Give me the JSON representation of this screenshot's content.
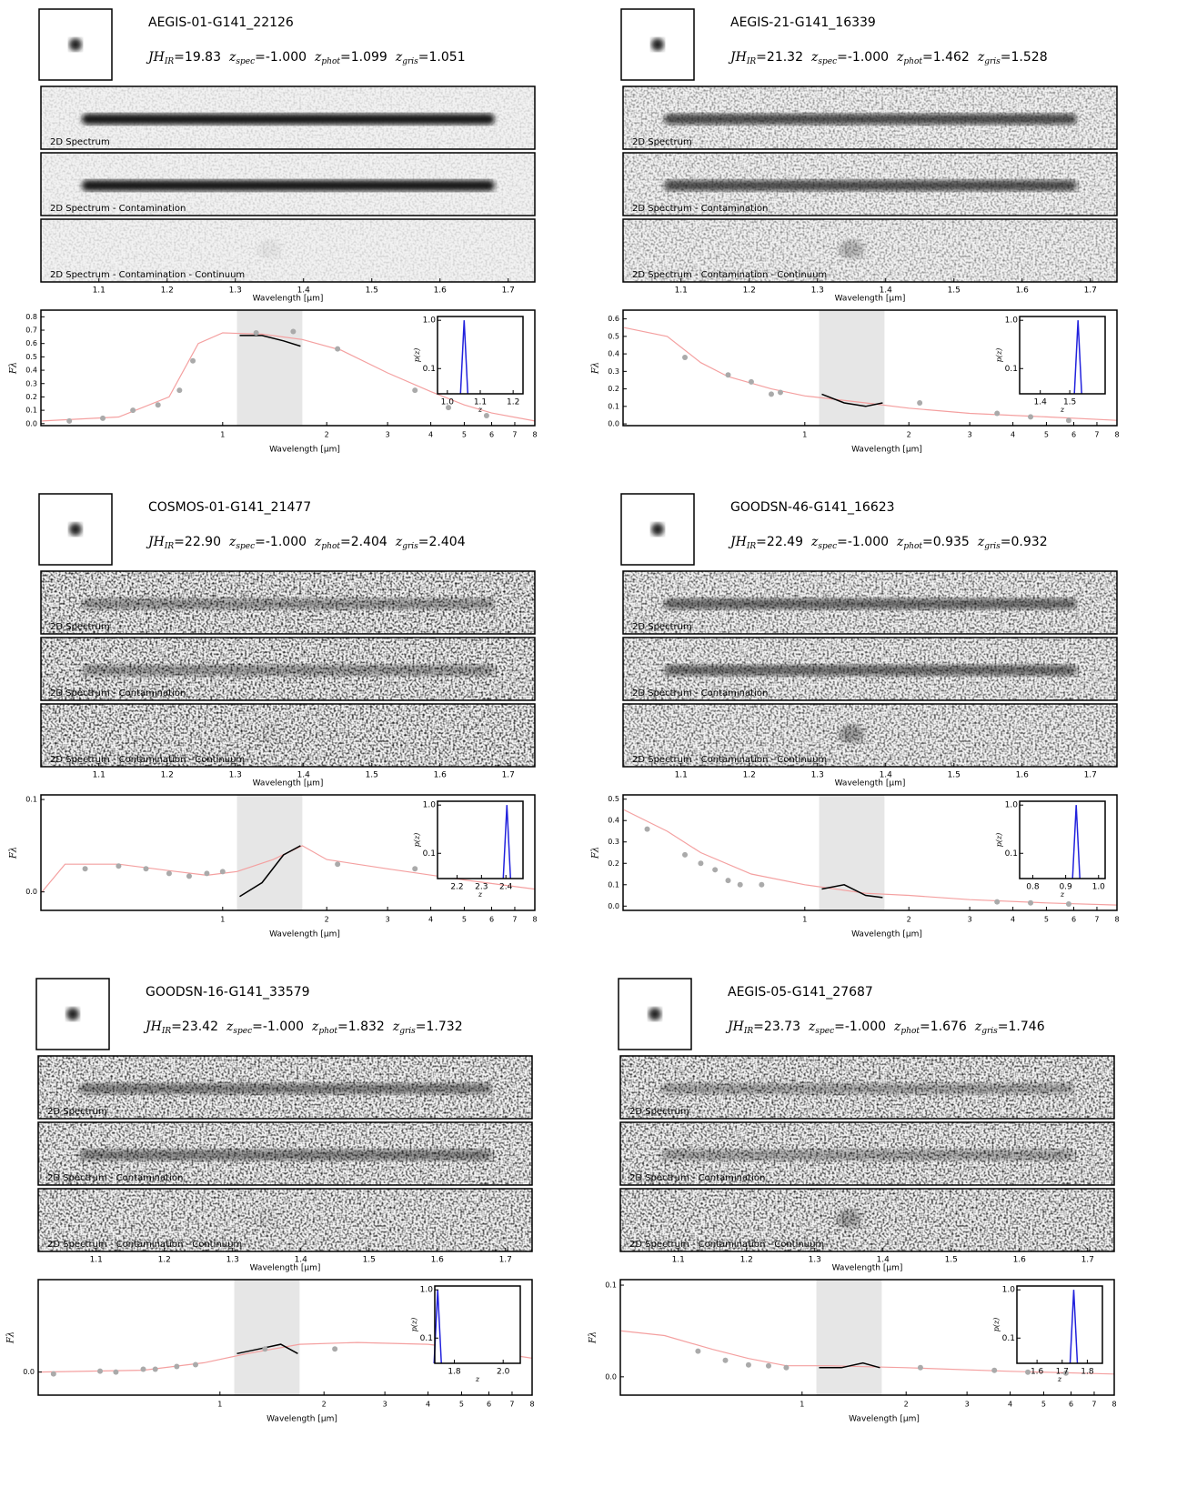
{
  "labels": {
    "jh": "JH",
    "ir": "IR",
    "z": "z",
    "spec": "spec",
    "phot": "phot",
    "gris": "gris",
    "eq": "=",
    "strips": [
      "2D Spectrum",
      "2D Spectrum - Contamination",
      "2D Spectrum - Contamination - Continuum"
    ],
    "wavelength": "Wavelength [μm]",
    "flux": "Fλ",
    "pz": "p(z)"
  },
  "panels": [
    {
      "object_id": "AEGIS-01-G141_22126",
      "jh": "19.83",
      "z_spec": "-1.000",
      "z_phot": "1.099",
      "z_gris": "1.051",
      "strip_axis": {
        "xlim": [
          1.015,
          1.739
        ],
        "xticks": [
          1.1,
          1.2,
          1.3,
          1.4,
          1.5,
          1.6,
          1.7
        ]
      },
      "sed": {
        "type": "line",
        "log_x": true,
        "xlim": [
          0.298,
          8.0
        ],
        "xticks": [
          1,
          2,
          3,
          4,
          5,
          6,
          7,
          8
        ],
        "ylim": [
          -0.015,
          0.85
        ],
        "yticks": [
          {
            "value": 0,
            "label": "0.0"
          },
          0.1,
          0.2,
          0.3,
          0.4,
          0.5,
          0.6,
          0.7,
          0.8
        ],
        "shade": [
          1.1,
          1.7
        ],
        "model": {
          "color": "#f4a0a0",
          "x": [
            0.3,
            0.5,
            0.7,
            0.85,
            1.0,
            1.3,
            1.7,
            2.2,
            3,
            4,
            5,
            6,
            8
          ],
          "y": [
            0.02,
            0.05,
            0.2,
            0.6,
            0.68,
            0.67,
            0.63,
            0.55,
            0.38,
            0.24,
            0.14,
            0.08,
            0.02
          ]
        },
        "spectrum": {
          "color": "#000000",
          "x": [
            1.12,
            1.3,
            1.5,
            1.68
          ],
          "y": [
            0.66,
            0.66,
            0.62,
            0.58
          ]
        },
        "photometry": {
          "color": "#aaaaaa",
          "x": [
            0.36,
            0.45,
            0.55,
            0.65,
            0.75,
            0.82,
            1.25,
            1.6,
            2.15,
            3.6,
            4.5,
            5.8
          ],
          "y": [
            0.02,
            0.04,
            0.1,
            0.14,
            0.25,
            0.47,
            0.68,
            0.69,
            0.56,
            0.25,
            0.12,
            0.06
          ]
        }
      },
      "inset": {
        "xlim": [
          0.97,
          1.23
        ],
        "xticks": [
          {
            "value": 1,
            "label": "1.0"
          },
          1.1,
          1.2
        ],
        "ylim": [
          0.03,
          1.2
        ],
        "yticks": [
          {
            "value": 1,
            "label": "1.0"
          },
          0.1
        ]
      }
    },
    {
      "object_id": "AEGIS-21-G141_16339",
      "jh": "21.32",
      "z_spec": "-1.000",
      "z_phot": "1.462",
      "z_gris": "1.528",
      "strip_axis": {
        "xlim": [
          1.015,
          1.739
        ],
        "xticks": [
          1.1,
          1.2,
          1.3,
          1.4,
          1.5,
          1.6,
          1.7
        ]
      },
      "sed": {
        "type": "line",
        "log_x": true,
        "xlim": [
          0.298,
          8.0
        ],
        "xticks": [
          1,
          2,
          3,
          4,
          5,
          6,
          7,
          8
        ],
        "ylim": [
          -0.01,
          0.65
        ],
        "yticks": [
          {
            "value": 0,
            "label": "0.0"
          },
          0.1,
          0.2,
          0.3,
          0.4,
          0.5,
          0.6
        ],
        "shade": [
          1.1,
          1.7
        ],
        "model": {
          "color": "#f4a0a0",
          "x": [
            0.3,
            0.4,
            0.5,
            0.6,
            0.8,
            1.0,
            1.5,
            2,
            3,
            5,
            8
          ],
          "y": [
            0.55,
            0.5,
            0.35,
            0.27,
            0.2,
            0.16,
            0.12,
            0.09,
            0.06,
            0.04,
            0.02
          ]
        },
        "spectrum": {
          "color": "#000000",
          "x": [
            1.12,
            1.3,
            1.5,
            1.68
          ],
          "y": [
            0.17,
            0.12,
            0.1,
            0.12
          ]
        },
        "photometry": {
          "color": "#aaaaaa",
          "x": [
            0.45,
            0.6,
            0.7,
            0.8,
            0.85,
            2.15,
            3.6,
            4.5,
            5.8
          ],
          "y": [
            0.38,
            0.28,
            0.24,
            0.17,
            0.18,
            0.12,
            0.06,
            0.04,
            0.02
          ]
        }
      },
      "inset": {
        "xlim": [
          1.33,
          1.62
        ],
        "xticks": [
          1.4,
          1.5
        ],
        "ylim": [
          0.03,
          1.2
        ],
        "yticks": [
          {
            "value": 1,
            "label": "1.0"
          },
          0.1
        ]
      }
    },
    {
      "object_id": "COSMOS-01-G141_21477",
      "jh": "22.90",
      "z_spec": "-1.000",
      "z_phot": "2.404",
      "z_gris": "2.404",
      "strip_axis": {
        "xlim": [
          1.015,
          1.739
        ],
        "xticks": [
          1.1,
          1.2,
          1.3,
          1.4,
          1.5,
          1.6,
          1.7
        ]
      },
      "sed": {
        "type": "line",
        "log_x": true,
        "xlim": [
          0.298,
          8.0
        ],
        "xticks": [
          1,
          2,
          3,
          4,
          5,
          6,
          7,
          8
        ],
        "ylim": [
          -0.02,
          0.105
        ],
        "yticks": [
          {
            "value": 0,
            "label": "0.0"
          },
          0.1
        ],
        "shade": [
          1.1,
          1.7
        ],
        "model": {
          "color": "#f4a0a0",
          "x": [
            0.3,
            0.35,
            0.5,
            0.7,
            0.9,
            1.1,
            1.4,
            1.7,
            2,
            3,
            5,
            8
          ],
          "y": [
            0.0,
            0.03,
            0.03,
            0.023,
            0.018,
            0.022,
            0.035,
            0.05,
            0.035,
            0.025,
            0.013,
            0.003
          ]
        },
        "spectrum": {
          "color": "#000000",
          "x": [
            1.12,
            1.3,
            1.5,
            1.68
          ],
          "y": [
            -0.005,
            0.01,
            0.04,
            0.05
          ]
        },
        "photometry": {
          "color": "#aaaaaa",
          "x": [
            0.4,
            0.5,
            0.6,
            0.7,
            0.8,
            0.9,
            1.0,
            2.15,
            3.6
          ],
          "y": [
            0.025,
            0.028,
            0.025,
            0.02,
            0.017,
            0.02,
            0.022,
            0.03,
            0.025
          ]
        }
      },
      "inset": {
        "xlim": [
          2.12,
          2.47
        ],
        "xticks": [
          2.2,
          2.3,
          2.4
        ],
        "ylim": [
          0.03,
          1.2
        ],
        "yticks": [
          {
            "value": 1,
            "label": "1.0"
          },
          0.1
        ]
      }
    },
    {
      "object_id": "GOODSN-46-G141_16623",
      "jh": "22.49",
      "z_spec": "-1.000",
      "z_phot": "0.935",
      "z_gris": "0.932",
      "strip_axis": {
        "xlim": [
          1.015,
          1.739
        ],
        "xticks": [
          1.1,
          1.2,
          1.3,
          1.4,
          1.5,
          1.6,
          1.7
        ]
      },
      "sed": {
        "type": "line",
        "log_x": true,
        "xlim": [
          0.298,
          8.0
        ],
        "xticks": [
          1,
          2,
          3,
          4,
          5,
          6,
          7,
          8
        ],
        "ylim": [
          -0.02,
          0.52
        ],
        "yticks": [
          {
            "value": 0,
            "label": "0.0"
          },
          0.1,
          0.2,
          0.3,
          0.4,
          0.5
        ],
        "shade": [
          1.1,
          1.7
        ],
        "model": {
          "color": "#f4a0a0",
          "x": [
            0.3,
            0.4,
            0.5,
            0.7,
            1,
            1.5,
            2,
            3,
            5,
            8
          ],
          "y": [
            0.45,
            0.35,
            0.25,
            0.15,
            0.1,
            0.06,
            0.05,
            0.03,
            0.015,
            0.005
          ]
        },
        "spectrum": {
          "color": "#000000",
          "x": [
            1.12,
            1.3,
            1.5,
            1.68
          ],
          "y": [
            0.08,
            0.1,
            0.05,
            0.04
          ]
        },
        "photometry": {
          "color": "#aaaaaa",
          "x": [
            0.35,
            0.45,
            0.5,
            0.55,
            0.6,
            0.65,
            0.75,
            3.6,
            4.5,
            5.8
          ],
          "y": [
            0.36,
            0.24,
            0.2,
            0.17,
            0.12,
            0.1,
            0.1,
            0.02,
            0.015,
            0.01
          ]
        }
      },
      "inset": {
        "xlim": [
          0.76,
          1.02
        ],
        "xticks": [
          0.8,
          0.9,
          {
            "value": 1,
            "label": "1.0"
          }
        ],
        "ylim": [
          0.03,
          1.2
        ],
        "yticks": [
          {
            "value": 1,
            "label": "1.0"
          },
          0.1
        ]
      }
    },
    {
      "object_id": "GOODSN-16-G141_33579",
      "jh": "23.42",
      "z_spec": "-1.000",
      "z_phot": "1.832",
      "z_gris": "1.732",
      "strip_axis": {
        "xlim": [
          1.015,
          1.739
        ],
        "xticks": [
          1.1,
          1.2,
          1.3,
          1.4,
          1.5,
          1.6,
          1.7
        ]
      },
      "sed": {
        "type": "line",
        "log_x": true,
        "xlim": [
          0.298,
          8.0
        ],
        "xticks": [
          1,
          2,
          3,
          4,
          5,
          6,
          7,
          8
        ],
        "ylim": [
          -0.025,
          0.1
        ],
        "yticks": [
          {
            "value": 0,
            "label": "0.0"
          }
        ],
        "shade": [
          1.1,
          1.7
        ],
        "model": {
          "color": "#f4a0a0",
          "x": [
            0.3,
            0.6,
            0.9,
            1.2,
            1.7,
            2.5,
            4,
            6,
            8
          ],
          "y": [
            0.0,
            0.002,
            0.01,
            0.02,
            0.03,
            0.032,
            0.03,
            0.022,
            0.015
          ]
        },
        "spectrum": {
          "color": "#000000",
          "x": [
            1.12,
            1.3,
            1.5,
            1.68
          ],
          "y": [
            0.02,
            0.025,
            0.03,
            0.02
          ]
        },
        "photometry": {
          "color": "#aaaaaa",
          "x": [
            0.33,
            0.45,
            0.5,
            0.6,
            0.65,
            0.75,
            0.85,
            1.35,
            2.15
          ],
          "y": [
            -0.002,
            0.001,
            0.0,
            0.003,
            0.003,
            0.006,
            0.008,
            0.025,
            0.025
          ]
        }
      },
      "inset": {
        "xlim": [
          1.72,
          2.07
        ],
        "xticks": [
          1.8,
          {
            "value": 2,
            "label": "2.0"
          }
        ],
        "ylim": [
          0.03,
          1.2
        ],
        "yticks": [
          {
            "value": 1,
            "label": "1.0"
          },
          0.1
        ]
      }
    },
    {
      "object_id": "AEGIS-05-G141_27687",
      "jh": "23.73",
      "z_spec": "-1.000",
      "z_phot": "1.676",
      "z_gris": "1.746",
      "strip_axis": {
        "xlim": [
          1.015,
          1.739
        ],
        "xticks": [
          1.1,
          1.2,
          1.3,
          1.4,
          1.5,
          1.6,
          1.7
        ]
      },
      "sed": {
        "type": "line",
        "log_x": true,
        "xlim": [
          0.298,
          8.0
        ],
        "xticks": [
          1,
          2,
          3,
          4,
          5,
          6,
          7,
          8
        ],
        "ylim": [
          -0.02,
          0.106
        ],
        "yticks": [
          {
            "value": 0,
            "label": "0.0"
          },
          0.1
        ],
        "shade": [
          1.1,
          1.7
        ],
        "model": {
          "color": "#f4a0a0",
          "x": [
            0.3,
            0.4,
            0.55,
            0.7,
            0.9,
            1.2,
            2,
            4,
            8
          ],
          "y": [
            0.05,
            0.045,
            0.03,
            0.02,
            0.012,
            0.012,
            0.01,
            0.006,
            0.003
          ]
        },
        "spectrum": {
          "color": "#000000",
          "x": [
            1.12,
            1.3,
            1.5,
            1.68
          ],
          "y": [
            0.01,
            0.01,
            0.015,
            0.01
          ]
        },
        "photometry": {
          "color": "#aaaaaa",
          "x": [
            0.5,
            0.6,
            0.7,
            0.8,
            0.9,
            2.2,
            3.6,
            4.5,
            5.8
          ],
          "y": [
            0.028,
            0.018,
            0.013,
            0.012,
            0.01,
            0.01,
            0.007,
            0.005,
            0.004
          ]
        }
      },
      "inset": {
        "xlim": [
          1.52,
          1.86
        ],
        "xticks": [
          1.6,
          1.7,
          1.8
        ],
        "ylim": [
          0.03,
          1.2
        ],
        "yticks": [
          {
            "value": 1,
            "label": "1.0"
          },
          0.1
        ]
      }
    }
  ]
}
